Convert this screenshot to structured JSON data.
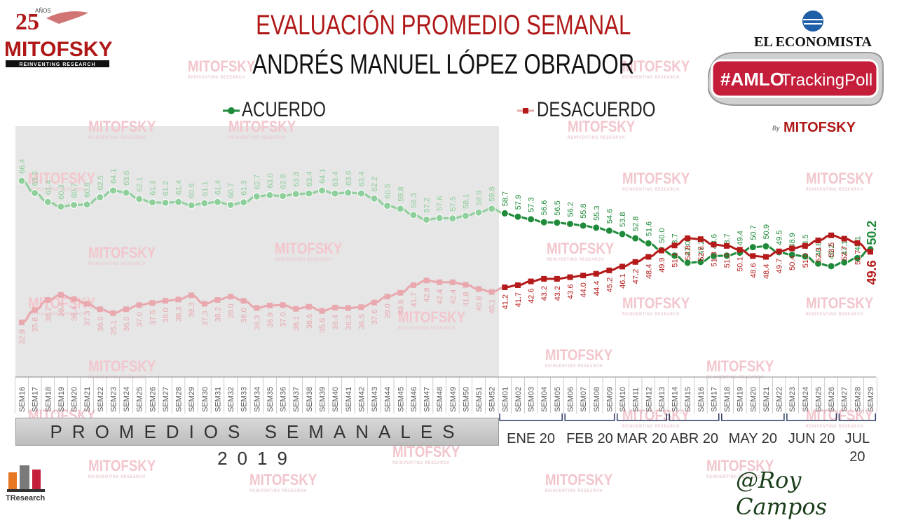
{
  "title_line1": "EVALUACIÓN PROMEDIO SEMANAL",
  "title_line2": "ANDRÉS MANUEL LÓPEZ OBRADOR",
  "band_2019_label": "PROMEDIOS SEMANALES 2019",
  "watermark_text": "MITOFSKY",
  "watermark_sub": "REINVENTING RESEARCH",
  "logo_left": {
    "years": "25",
    "anos": "AÑOS",
    "name": "MITOFSKY",
    "tagline": "REINVENTING RESEARCH"
  },
  "logo_right": {
    "publisher": "EL ECONOMISTA",
    "hashtag_a": "#AMLO",
    "hashtag_b": "TrackingPoll",
    "by": "By",
    "by_brand": "MITOFSKY"
  },
  "logo_bottom_left": "TResearch",
  "signature": "@Roy Campos",
  "colors": {
    "acuerdo": "#1e8a3a",
    "desacuerdo": "#b51a1a",
    "title_red": "#b01818",
    "shade": "#e6e6e6",
    "acuerdo_2019": "#8fcf9c",
    "desacuerdo_2019": "#e8a8ae"
  },
  "chart_data": {
    "type": "line",
    "legend_position": "top",
    "grid": false,
    "categories": [
      "SEM16",
      "SEM17",
      "SEM18",
      "SEM19",
      "SEM20",
      "SEM21",
      "SEM22",
      "SEM23",
      "SEM24",
      "SEM25",
      "SEM26",
      "SEM27",
      "SEM28",
      "SEM29",
      "SEM30",
      "SEM31",
      "SEM32",
      "SEM33",
      "SEM34",
      "SEM35",
      "SEM36",
      "SEM37",
      "SEM38",
      "SEM39",
      "SEM40",
      "SEM41",
      "SEM42",
      "SEM43",
      "SEM44",
      "SEM45",
      "SEM46",
      "SEM47",
      "SEM48",
      "SEM49",
      "SEM50",
      "SEM51",
      "SEM52",
      "SEM01",
      "SEM02",
      "SEM03",
      "SEM04",
      "SEM05",
      "SEM06",
      "SEM07",
      "SEM08",
      "SEM09",
      "SEM10",
      "SEM11",
      "SEM12",
      "SEM13",
      "SEM14",
      "SEM15",
      "SEM16",
      "SEM17",
      "SEM18",
      "SEM19",
      "SEM20",
      "SEM21",
      "SEM22",
      "SEM23",
      "SEM24",
      "SEM25",
      "SEM26",
      "SEM27",
      "SEM28",
      "SEM29"
    ],
    "series": [
      {
        "name": "ACUERDO",
        "values": [
          66.4,
          63.5,
          61.4,
          60.3,
          60.7,
          60.8,
          62.5,
          64.1,
          63.6,
          62.1,
          61.3,
          61.2,
          61.4,
          60.6,
          61.1,
          61.4,
          60.7,
          61.3,
          62.7,
          63.0,
          62.8,
          63.3,
          63.4,
          64.1,
          63.4,
          63.6,
          63.4,
          62.2,
          60.5,
          59.8,
          58.3,
          57.2,
          57.6,
          57.5,
          58.1,
          58.9,
          59.8,
          58.7,
          57.9,
          57.3,
          56.6,
          56.5,
          56.2,
          55.8,
          55.3,
          54.6,
          53.8,
          52.8,
          51.6,
          50.0,
          48.7,
          47.0,
          47.2,
          48.6,
          48.7,
          49.4,
          50.7,
          50.9,
          49.5,
          48.9,
          48.5,
          46.8,
          46.2,
          47.1,
          48.1,
          50.2
        ]
      },
      {
        "name": "DESACUERDO",
        "values": [
          32.9,
          35.8,
          38.2,
          39.4,
          38.4,
          37.3,
          36.0,
          35.1,
          36.0,
          37.0,
          37.5,
          38.0,
          38.3,
          39.3,
          37.3,
          38.2,
          39.0,
          38.0,
          36.3,
          36.9,
          37.0,
          36.1,
          36.6,
          35.6,
          36.4,
          36.3,
          36.5,
          37.6,
          39.0,
          39.9,
          41.7,
          42.8,
          42.4,
          42.4,
          41.8,
          40.8,
          40.1,
          41.2,
          41.7,
          42.6,
          43.2,
          43.2,
          43.6,
          44.0,
          44.4,
          45.2,
          46.1,
          47.2,
          48.4,
          49.9,
          51.1,
          52.8,
          52.6,
          51.3,
          51.0,
          50.1,
          48.6,
          48.4,
          49.7,
          50.4,
          51.0,
          52.3,
          53.5,
          52.7,
          51.7,
          49.6
        ]
      }
    ],
    "period_labels": [
      {
        "label": "ENE 20",
        "from": 37,
        "to": 41
      },
      {
        "label": "FEB 20",
        "from": 42,
        "to": 45
      },
      {
        "label": "MAR 20",
        "from": 46,
        "to": 49
      },
      {
        "label": "ABR 20",
        "from": 50,
        "to": 53
      },
      {
        "label": "MAY 20",
        "from": 54,
        "to": 58
      },
      {
        "label": "JUN 20",
        "from": 59,
        "to": 62
      },
      {
        "label": "JUL 20",
        "from": 63,
        "to": 65
      }
    ],
    "highlight_split_index": 37
  }
}
